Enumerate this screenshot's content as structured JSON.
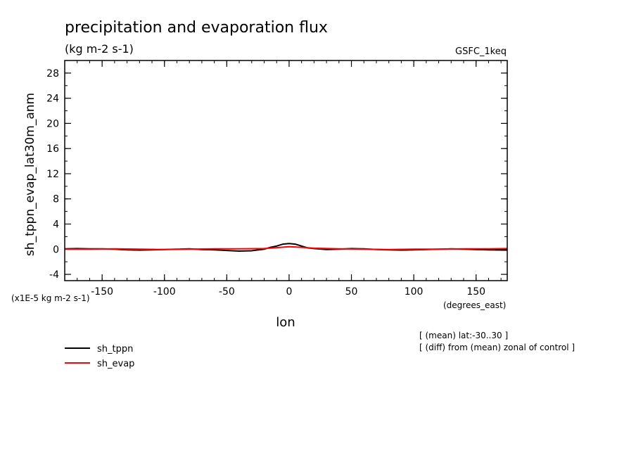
{
  "chart_data": {
    "type": "line",
    "title": "precipitation and evaporation flux",
    "subtitle": "(kg m-2 s-1)",
    "model_label": "GSFC_1keq",
    "ylabel": "sh_tppn_evap_lat30m_anm",
    "yscale_label": "(x1E-5 kg m-2 s-1)",
    "xlabel": "lon",
    "xunits": "(degrees_east)",
    "xlim": [
      -180,
      175
    ],
    "ylim": [
      -5,
      30
    ],
    "xticks": [
      -150,
      -100,
      -50,
      0,
      50,
      100,
      150
    ],
    "xtick_labels": [
      "-150",
      "-100",
      "-50",
      "0",
      "50",
      "100",
      "150"
    ],
    "yticks": [
      -4,
      0,
      4,
      8,
      12,
      16,
      20,
      24,
      28
    ],
    "ytick_labels": [
      "-4",
      "0",
      "4",
      "8",
      "12",
      "16",
      "20",
      "24",
      "28"
    ],
    "notes": [
      "[ (mean) lat:-30..30 ]",
      "[ (diff) from (mean) zonal of control ]"
    ],
    "legend_position": "bottom-left",
    "series": [
      {
        "name": "sh_tppn",
        "color": "#000000",
        "x": [
          -180,
          -170,
          -160,
          -150,
          -140,
          -130,
          -120,
          -110,
          -100,
          -90,
          -80,
          -70,
          -60,
          -50,
          -40,
          -30,
          -20,
          -15,
          -10,
          -5,
          0,
          5,
          10,
          15,
          20,
          30,
          40,
          50,
          60,
          70,
          80,
          90,
          100,
          110,
          120,
          130,
          140,
          150,
          160,
          175
        ],
        "y": [
          0.05,
          0.1,
          0.05,
          0.05,
          0.0,
          -0.1,
          -0.15,
          -0.1,
          -0.05,
          0.0,
          0.05,
          -0.05,
          -0.1,
          -0.2,
          -0.3,
          -0.25,
          0.0,
          0.3,
          0.5,
          0.8,
          0.9,
          0.8,
          0.5,
          0.2,
          0.1,
          -0.05,
          0.0,
          0.1,
          0.05,
          -0.05,
          -0.1,
          -0.15,
          -0.1,
          -0.05,
          0.0,
          0.05,
          0.0,
          -0.05,
          -0.1,
          -0.15
        ]
      },
      {
        "name": "sh_evap",
        "color": "#ff0000",
        "x": [
          -180,
          -160,
          -140,
          -120,
          -100,
          -80,
          -60,
          -40,
          -20,
          -10,
          0,
          10,
          20,
          40,
          60,
          80,
          100,
          120,
          140,
          160,
          175
        ],
        "y": [
          0.0,
          0.0,
          0.05,
          0.0,
          -0.05,
          0.0,
          0.05,
          0.05,
          0.1,
          0.25,
          0.4,
          0.3,
          0.15,
          0.05,
          0.0,
          -0.05,
          0.0,
          0.0,
          0.05,
          0.05,
          0.1
        ]
      }
    ]
  }
}
